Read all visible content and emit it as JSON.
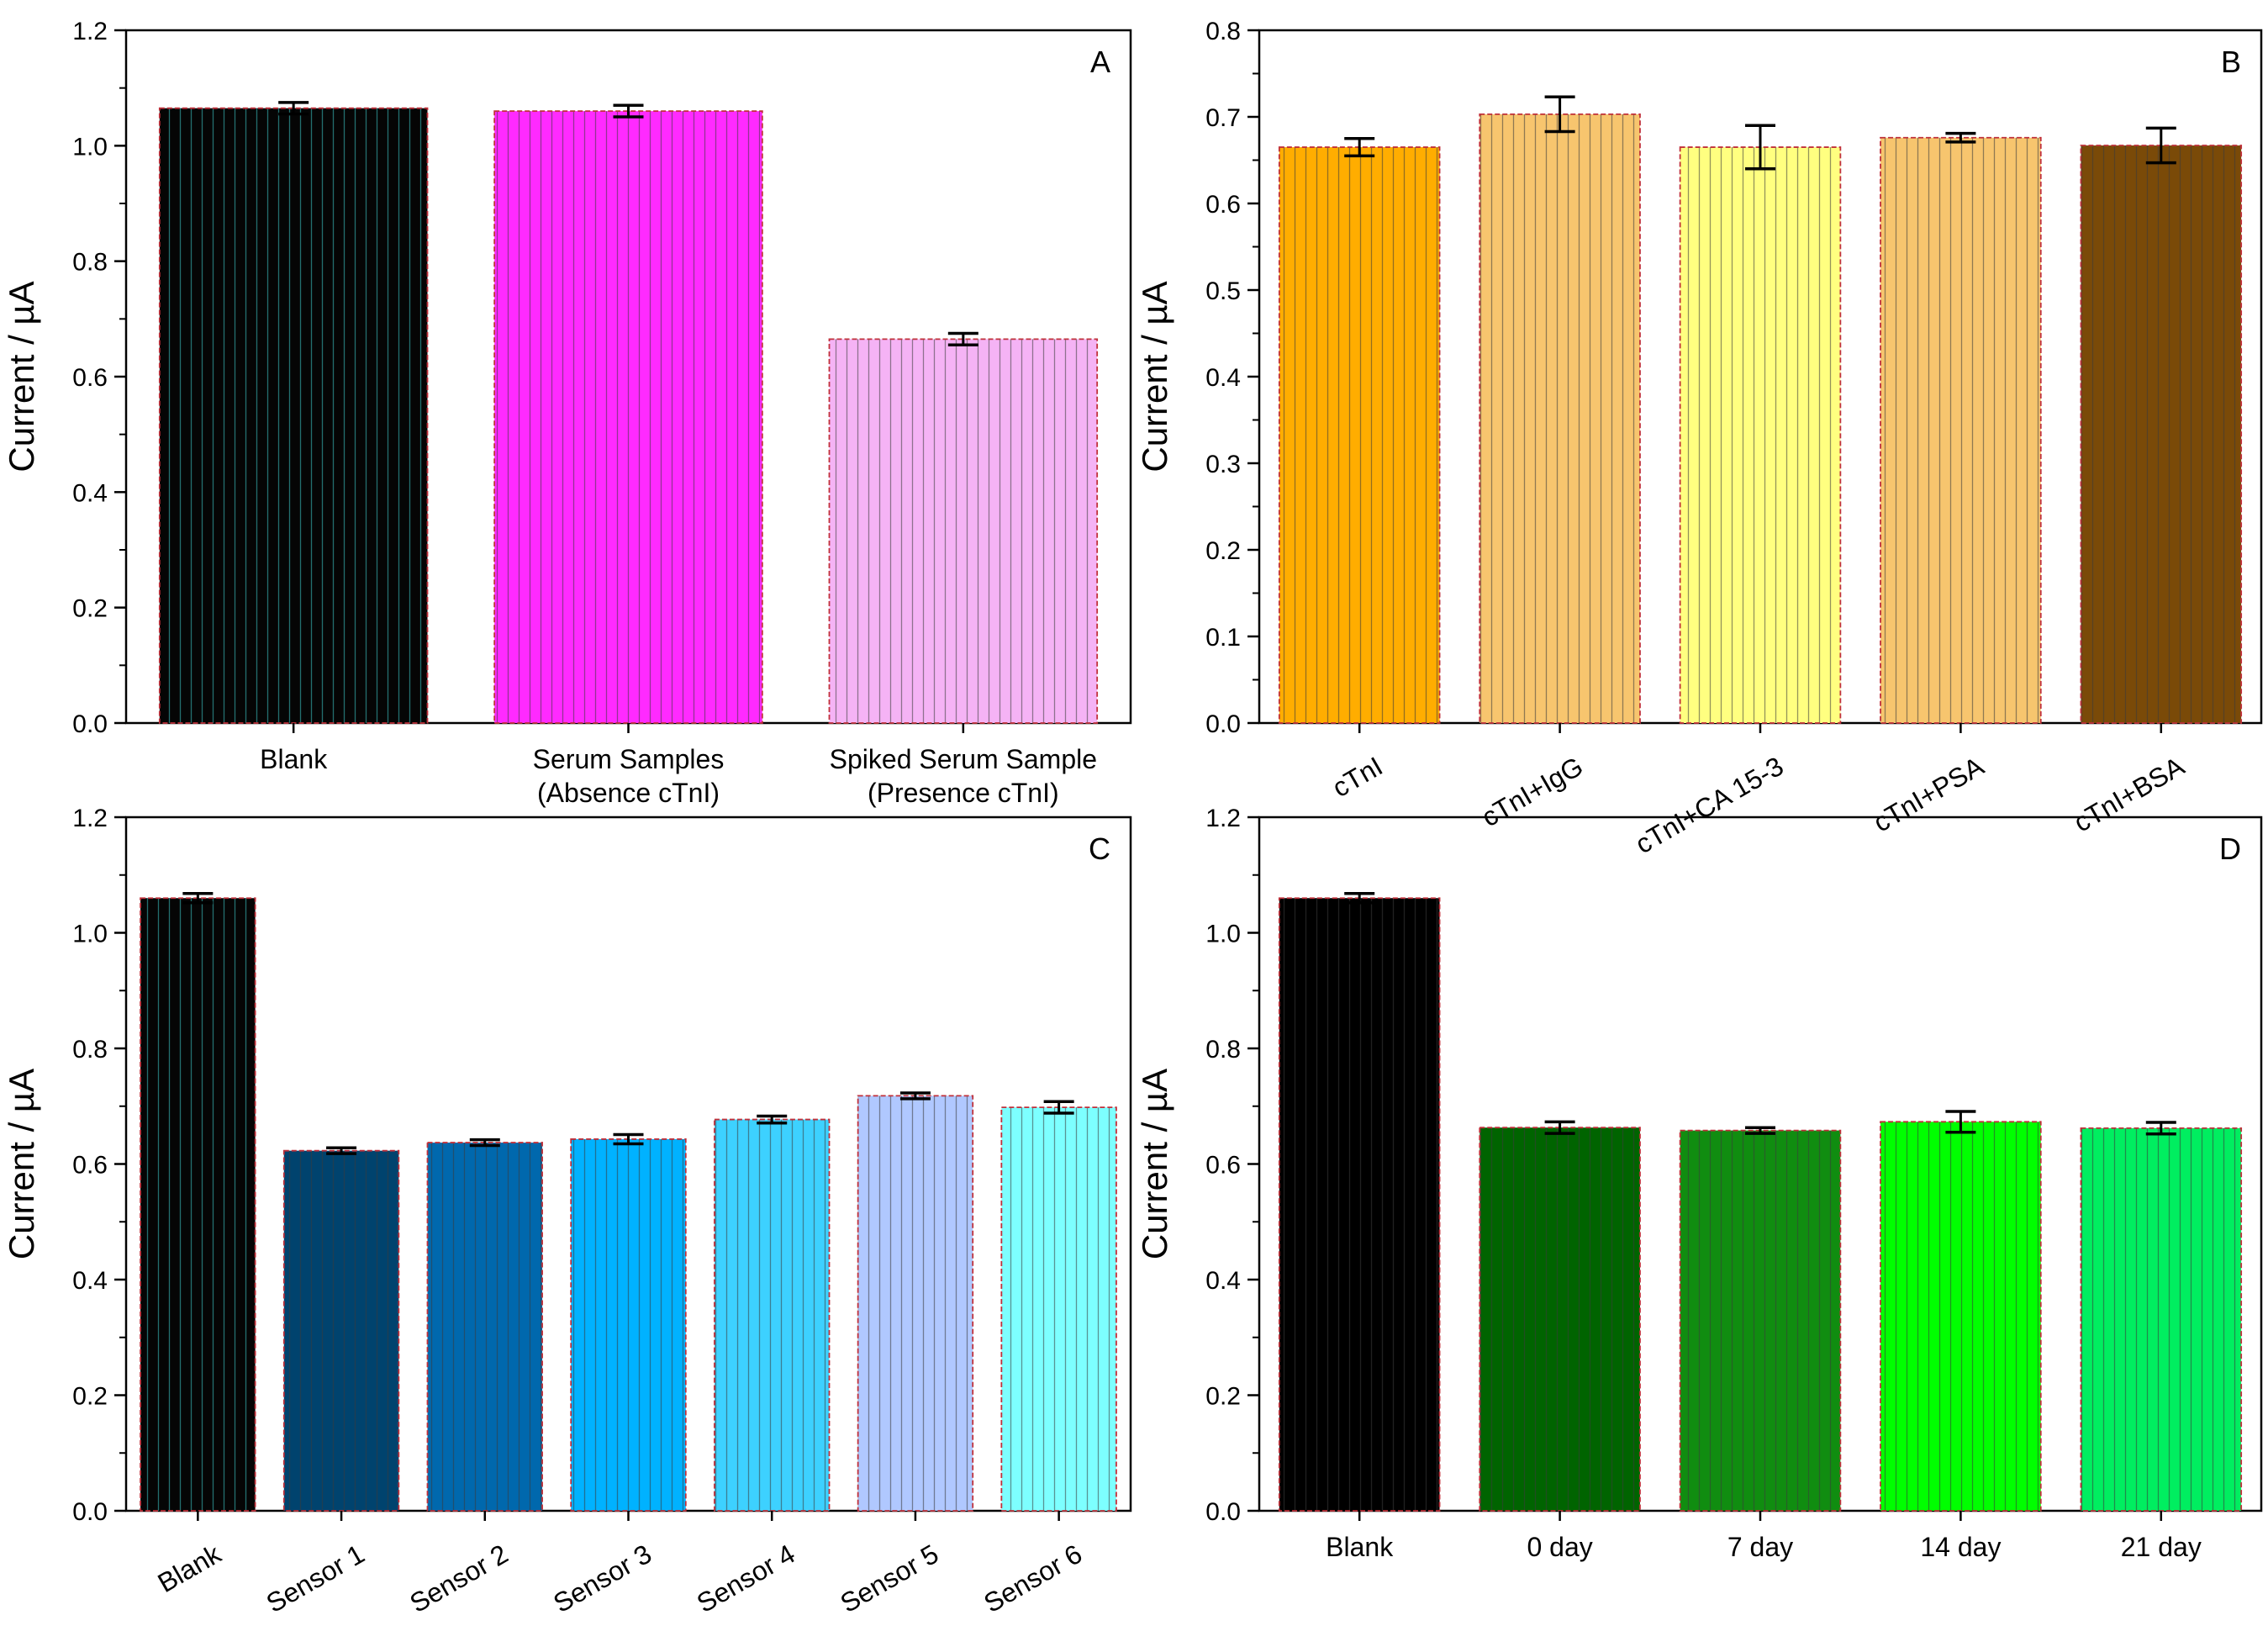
{
  "chart_data": [
    {
      "panel": "A",
      "type": "bar",
      "ylabel": "Current / µA",
      "ylim": [
        0,
        1.2
      ],
      "yticks": [
        0.0,
        0.2,
        0.4,
        0.6,
        0.8,
        1.0,
        1.2
      ],
      "categories": [
        [
          "Blank"
        ],
        [
          "Serum Samples",
          "(Absence cTnI)"
        ],
        [
          "Spiked Serum Sample",
          "(Presence cTnI)"
        ]
      ],
      "values": [
        1.065,
        1.06,
        0.665
      ],
      "errors": [
        0.01,
        0.01,
        0.01
      ],
      "colors": [
        "#050505",
        "#ff2aff",
        "#f5b3f5"
      ]
    },
    {
      "panel": "B",
      "type": "bar",
      "ylabel": "Current / µA",
      "ylim": [
        0,
        0.8
      ],
      "yticks": [
        0.0,
        0.1,
        0.2,
        0.3,
        0.4,
        0.5,
        0.6,
        0.7,
        0.8
      ],
      "categories": [
        [
          "cTnI"
        ],
        [
          "cTnI+IgG"
        ],
        [
          "cTnI+CA 15-3"
        ],
        [
          "cTnI+PSA"
        ],
        [
          "cTnI+BSA"
        ]
      ],
      "values": [
        0.665,
        0.703,
        0.665,
        0.676,
        0.667
      ],
      "errors": [
        0.01,
        0.02,
        0.025,
        0.005,
        0.02
      ],
      "colors": [
        "#ffad00",
        "#f7c56e",
        "#ffff80",
        "#f7c56e",
        "#7a4a08"
      ]
    },
    {
      "panel": "C",
      "type": "bar",
      "ylabel": "Current / µA",
      "ylim": [
        0,
        1.2
      ],
      "yticks": [
        0.0,
        0.2,
        0.4,
        0.6,
        0.8,
        1.0,
        1.2
      ],
      "categories": [
        [
          "Blank"
        ],
        [
          "Sensor 1"
        ],
        [
          "Sensor 2"
        ],
        [
          "Sensor 3"
        ],
        [
          "Sensor 4"
        ],
        [
          "Sensor 5"
        ],
        [
          "Sensor 6"
        ]
      ],
      "values": [
        1.06,
        0.623,
        0.637,
        0.643,
        0.677,
        0.718,
        0.698
      ],
      "errors": [
        0.008,
        0.005,
        0.005,
        0.008,
        0.006,
        0.005,
        0.01
      ],
      "colors": [
        "#050505",
        "#00436e",
        "#0068ad",
        "#00b2ff",
        "#3dd1ff",
        "#b0c8ff",
        "#7dffff"
      ]
    },
    {
      "panel": "D",
      "type": "bar",
      "ylabel": "Current / µA",
      "ylim": [
        0,
        1.2
      ],
      "yticks": [
        0.0,
        0.2,
        0.4,
        0.6,
        0.8,
        1.0,
        1.2
      ],
      "categories": [
        [
          "Blank"
        ],
        [
          "0 day"
        ],
        [
          "7 day"
        ],
        [
          "14 day"
        ],
        [
          "21 day"
        ]
      ],
      "values": [
        1.06,
        0.663,
        0.658,
        0.673,
        0.662
      ],
      "errors": [
        0.008,
        0.01,
        0.005,
        0.018,
        0.01
      ],
      "colors": [
        "#000000",
        "#006400",
        "#108d10",
        "#00ff00",
        "#00ee60"
      ]
    }
  ]
}
